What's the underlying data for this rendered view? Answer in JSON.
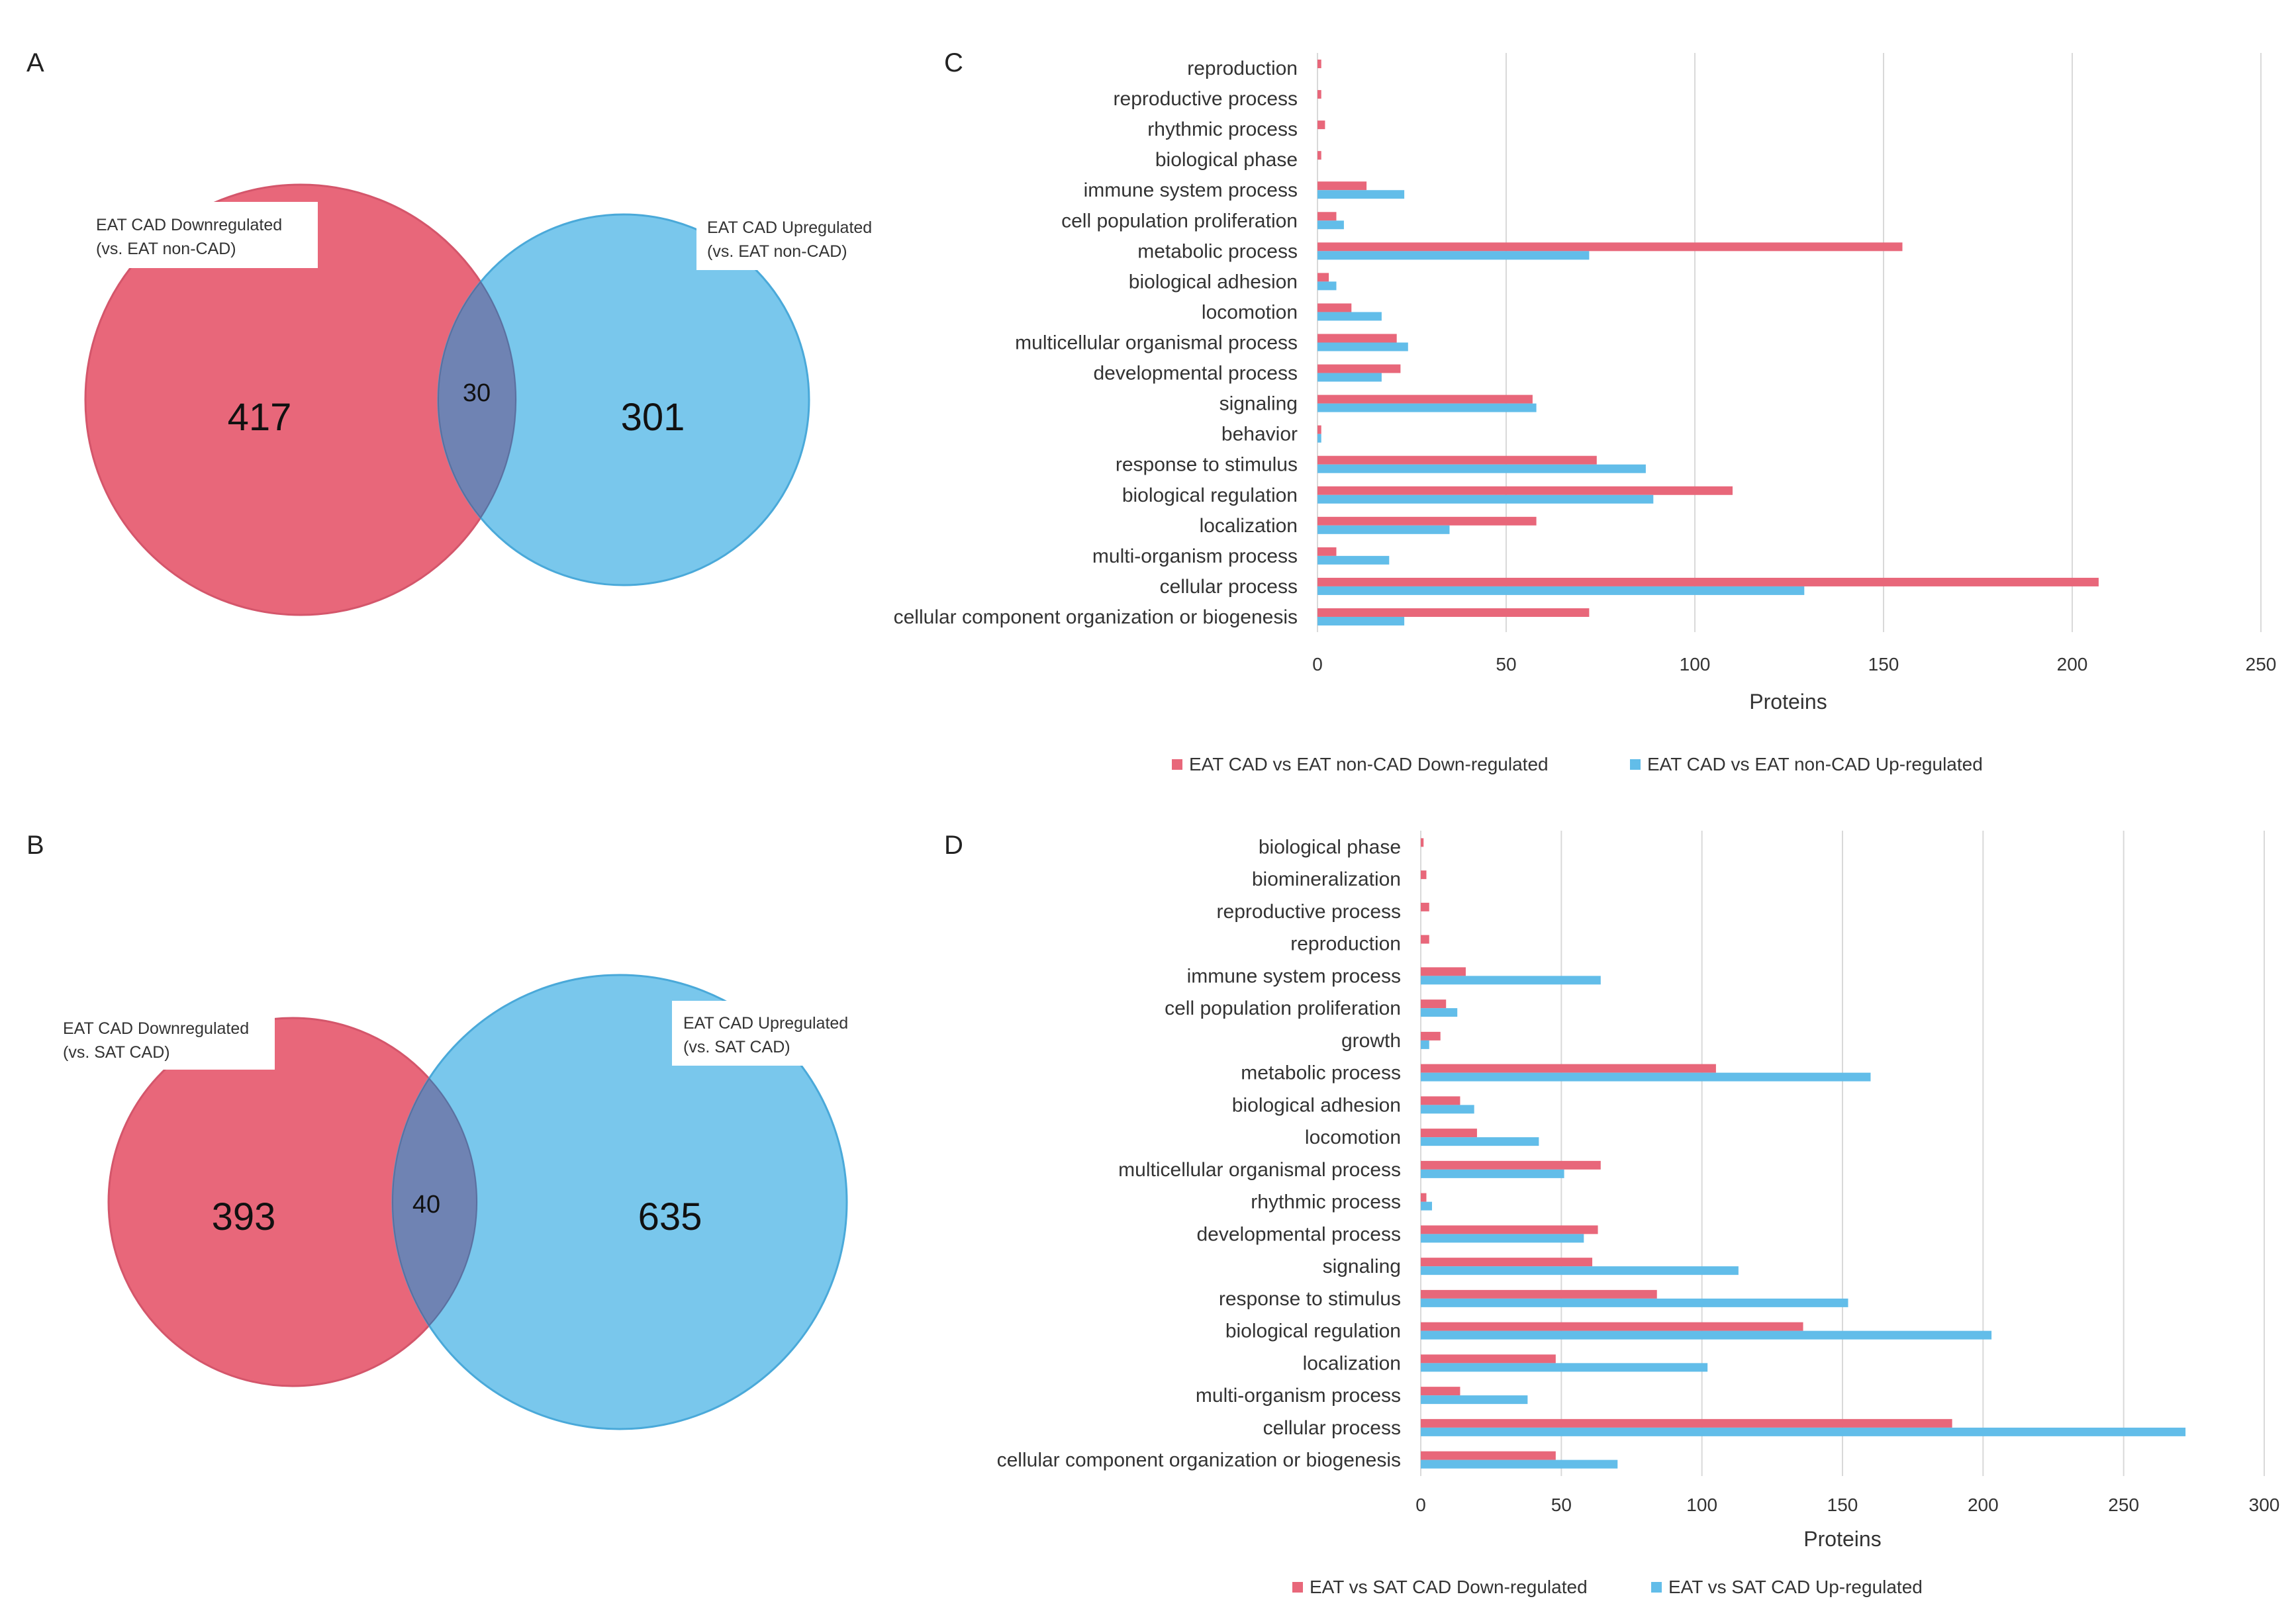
{
  "panels": {
    "a": "A",
    "b": "B",
    "c": "C",
    "d": "D"
  },
  "colors": {
    "down": "#e8677a",
    "up": "#62bde9",
    "overlap": "#6f83b3",
    "grid": "#d9d9d9",
    "text": "#333333"
  },
  "venn_a": {
    "left_label": [
      "EAT CAD Downregulated",
      "(vs. EAT non-CAD)"
    ],
    "right_label": [
      "EAT CAD Upregulated",
      "(vs. EAT non-CAD)"
    ],
    "left_count": "417",
    "overlap_count": "30",
    "right_count": "301"
  },
  "venn_b": {
    "left_label": [
      "EAT CAD Downregulated",
      "(vs. SAT CAD)"
    ],
    "right_label": [
      "EAT CAD Upregulated",
      "(vs. SAT CAD)"
    ],
    "left_count": "393",
    "overlap_count": "40",
    "right_count": "635"
  },
  "chart_data": [
    {
      "type": "bar",
      "orientation": "horizontal",
      "panel": "C",
      "xlabel": "Proteins",
      "xlim": [
        0,
        250
      ],
      "xticks": [
        0,
        50,
        100,
        150,
        200,
        250
      ],
      "grid": true,
      "legend_position": "bottom",
      "categories": [
        "reproduction",
        "reproductive process",
        "rhythmic process",
        "biological phase",
        "immune system process",
        "cell population proliferation",
        "metabolic process",
        "biological adhesion",
        "locomotion",
        "multicellular organismal process",
        "developmental process",
        "signaling",
        "behavior",
        "response to stimulus",
        "biological regulation",
        "localization",
        "multi-organism process",
        "cellular process",
        "cellular component organization or biogenesis"
      ],
      "series": [
        {
          "name": "EAT CAD vs EAT non-CAD Down-regulated",
          "color": "#e8677a",
          "values": [
            1,
            1,
            2,
            1,
            13,
            5,
            155,
            3,
            9,
            21,
            22,
            57,
            1,
            74,
            110,
            58,
            5,
            207,
            72
          ]
        },
        {
          "name": "EAT CAD vs EAT non-CAD Up-regulated",
          "color": "#62bde9",
          "values": [
            0,
            0,
            0,
            0,
            23,
            7,
            72,
            5,
            17,
            24,
            17,
            58,
            1,
            87,
            89,
            35,
            19,
            129,
            23
          ]
        }
      ]
    },
    {
      "type": "bar",
      "orientation": "horizontal",
      "panel": "D",
      "xlabel": "Proteins",
      "xlim": [
        0,
        300
      ],
      "xticks": [
        0,
        50,
        100,
        150,
        200,
        250,
        300
      ],
      "grid": true,
      "legend_position": "bottom",
      "categories": [
        "biological phase",
        "biomineralization",
        "reproductive process",
        "reproduction",
        "immune system process",
        "cell population proliferation",
        "growth",
        "metabolic process",
        "biological adhesion",
        "locomotion",
        "multicellular organismal process",
        "rhythmic process",
        "developmental process",
        "signaling",
        "response to stimulus",
        "biological regulation",
        "localization",
        "multi-organism process",
        "cellular process",
        "cellular component organization or biogenesis"
      ],
      "series": [
        {
          "name": "EAT vs SAT CAD Down-regulated",
          "color": "#e8677a",
          "values": [
            1,
            2,
            3,
            3,
            16,
            9,
            7,
            105,
            14,
            20,
            64,
            2,
            63,
            61,
            84,
            136,
            48,
            14,
            189,
            48
          ]
        },
        {
          "name": "EAT vs SAT CAD Up-regulated",
          "color": "#62bde9",
          "values": [
            0,
            0,
            0,
            0,
            64,
            13,
            3,
            160,
            19,
            42,
            51,
            4,
            58,
            113,
            152,
            203,
            102,
            38,
            272,
            70
          ]
        }
      ]
    }
  ]
}
